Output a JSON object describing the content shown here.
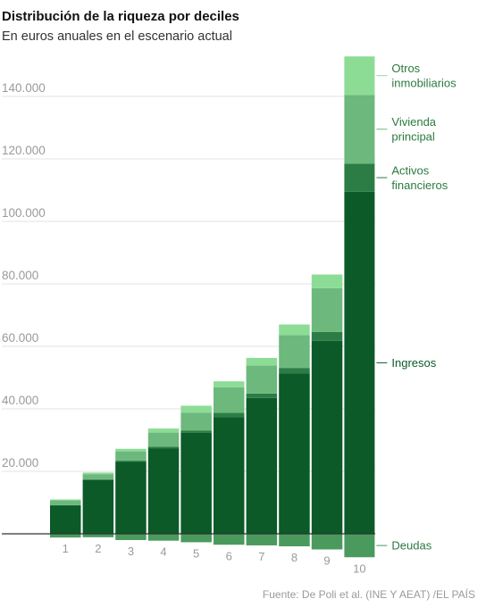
{
  "header": {
    "title": "Distribución de la riqueza por deciles",
    "subtitle": "En euros anuales en el escenario actual"
  },
  "footer": {
    "source": "Fuente: De Poli et al. (INE Y AEAT) /EL PAÍS"
  },
  "chart_data": {
    "type": "bar",
    "stacked": true,
    "categories": [
      "1",
      "2",
      "3",
      "4",
      "5",
      "6",
      "7",
      "8",
      "9",
      "10"
    ],
    "ylim": [
      -7000,
      153000
    ],
    "yticks": [
      {
        "value": 20000,
        "label": "20.000"
      },
      {
        "value": 40000,
        "label": "40.000"
      },
      {
        "value": 60000,
        "label": "60.000"
      },
      {
        "value": 80000,
        "label": "80.000"
      },
      {
        "value": 100000,
        "label": "100.000"
      },
      {
        "value": 120000,
        "label": "120.000"
      },
      {
        "value": 140000,
        "label": "140.000"
      }
    ],
    "grid": true,
    "legend_placement": "right, labels at series",
    "series": [
      {
        "name": "Ingresos",
        "color": "#0b5a28",
        "label_lines": [
          "Ingresos"
        ],
        "values": [
          9000,
          17200,
          23000,
          27400,
          32300,
          37300,
          43500,
          51300,
          61800,
          109500
        ]
      },
      {
        "name": "Activos financieros",
        "color": "#2b7d45",
        "label_lines": [
          "Activos",
          "financieros"
        ],
        "values": [
          200,
          300,
          400,
          500,
          700,
          1400,
          1400,
          1800,
          2800,
          9000
        ]
      },
      {
        "name": "Vivienda principal",
        "color": "#6db87c",
        "label_lines": [
          "Vivienda",
          "principal"
        ],
        "values": [
          1500,
          1600,
          3000,
          4500,
          5800,
          8200,
          9000,
          10500,
          14000,
          22000
        ]
      },
      {
        "name": "Otros inmobiliarios",
        "color": "#8ddc96",
        "label_lines": [
          "Otros",
          "inmobiliarios"
        ],
        "values": [
          300,
          500,
          800,
          1300,
          2200,
          1900,
          2400,
          3400,
          4400,
          12300
        ]
      },
      {
        "name": "Deudas",
        "color": "#4a9a5e",
        "label_lines": [
          "Deudas"
        ],
        "values": [
          -1200,
          -1100,
          -2000,
          -2200,
          -2700,
          -3500,
          -3700,
          -4000,
          -5000,
          -7500
        ]
      }
    ]
  }
}
